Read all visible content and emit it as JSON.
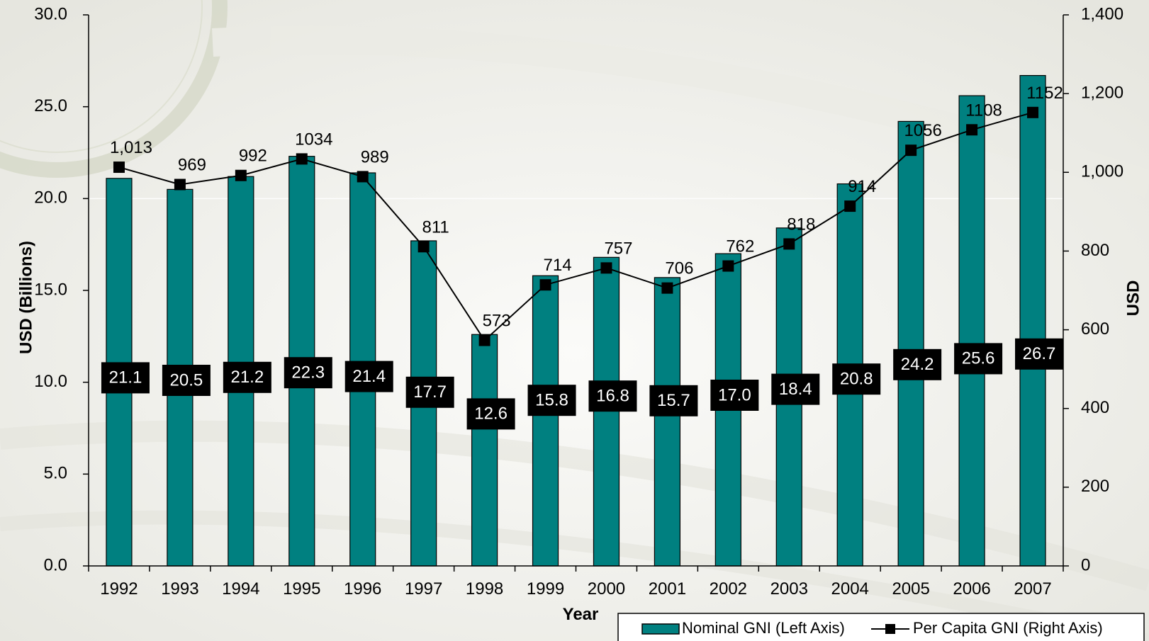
{
  "chart_data": {
    "type": "bar",
    "title": "",
    "xlabel": "Year",
    "ylabel_left": "USD (Billions)",
    "ylabel_right": "USD",
    "categories": [
      "1992",
      "1993",
      "1994",
      "1995",
      "1996",
      "1997",
      "1998",
      "1999",
      "2000",
      "2001",
      "2002",
      "2003",
      "2004",
      "2005",
      "2006",
      "2007"
    ],
    "series": [
      {
        "name": "Nominal GNI (Left Axis)",
        "type": "bar",
        "axis": "left",
        "color": "#008080",
        "values": [
          21.1,
          20.5,
          21.2,
          22.3,
          21.4,
          17.7,
          12.6,
          15.8,
          16.8,
          15.7,
          17.0,
          18.4,
          20.8,
          24.2,
          25.6,
          26.7
        ],
        "labels": [
          "21.1",
          "20.5",
          "21.2",
          "22.3",
          "21.4",
          "17.7",
          "12.6",
          "15.8",
          "16.8",
          "15.7",
          "17.0",
          "18.4",
          "20.8",
          "24.2",
          "25.6",
          "26.7"
        ]
      },
      {
        "name": "Per Capita GNI (Right Axis)",
        "type": "line",
        "axis": "right",
        "color": "#000000",
        "values": [
          1013,
          969,
          992,
          1034,
          989,
          811,
          573,
          714,
          757,
          706,
          762,
          818,
          914,
          1056,
          1108,
          1152
        ],
        "labels": [
          "1,013",
          "969",
          "992",
          "1034",
          "989",
          "811",
          "573",
          "714",
          "757",
          "706",
          "762",
          "818",
          "914",
          "1056",
          "1108",
          "1152"
        ]
      }
    ],
    "ylim_left": [
      0,
      30
    ],
    "ylim_right": [
      0,
      1400
    ],
    "yticks_left": [
      "0.0",
      "5.0",
      "10.0",
      "15.0",
      "20.0",
      "25.0",
      "30.0"
    ],
    "yticks_right": [
      "0",
      "200",
      "400",
      "600",
      "800",
      "1,000",
      "1,200",
      "1,400"
    ],
    "legend_position": "bottom-right",
    "grid": true
  }
}
